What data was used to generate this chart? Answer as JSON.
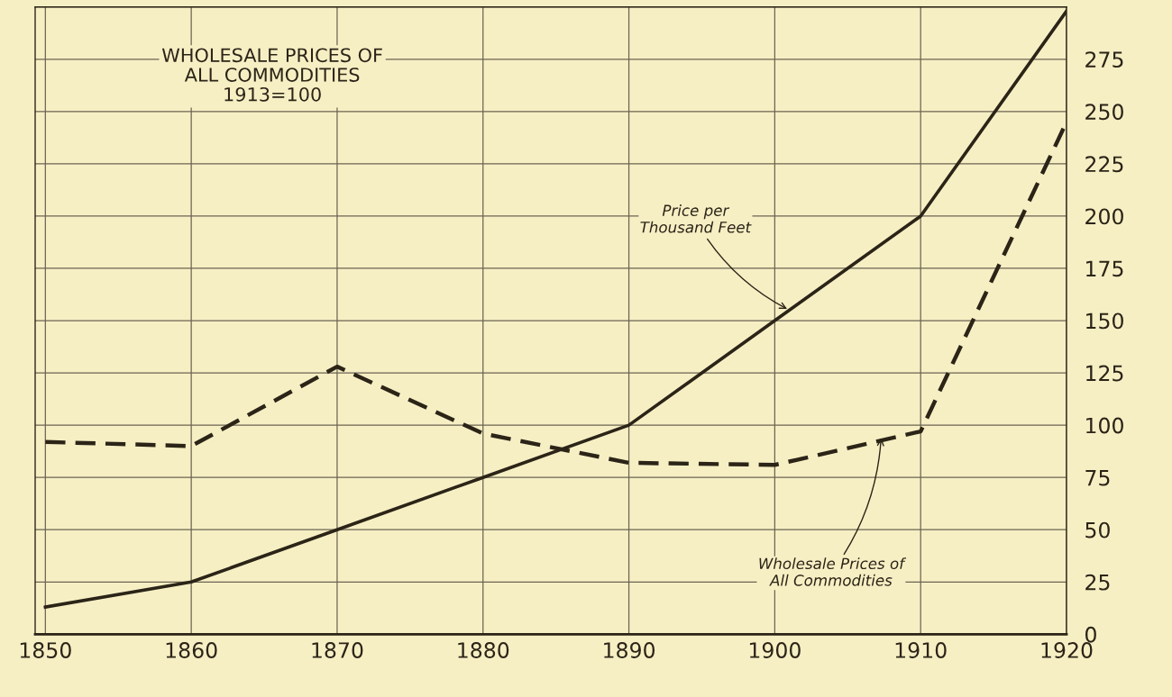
{
  "chart_data": {
    "type": "line",
    "x": [
      1850,
      1860,
      1870,
      1880,
      1890,
      1900,
      1910,
      1920
    ],
    "series": [
      {
        "color": "#2b2417",
        "line_style": "solid",
        "values": [
          13,
          25,
          50,
          75,
          100,
          150,
          200,
          298
        ]
      },
      {
        "color": "#2b2417",
        "line_style": "dashed",
        "values": [
          92,
          90,
          128,
          96,
          82,
          81,
          97,
          245
        ]
      }
    ],
    "xlim": [
      1849.3,
      1920
    ],
    "ylim": [
      0,
      300
    ],
    "xticks": [
      1850,
      1860,
      1870,
      1880,
      1890,
      1900,
      1910,
      1920
    ],
    "yticks": [
      0,
      25,
      50,
      75,
      100,
      125,
      150,
      175,
      200,
      225,
      250,
      275,
      {
        "value": 300,
        "label": null
      }
    ],
    "grid": true,
    "marker": "none",
    "annotations": [
      "WHOLESALE PRICES OF\nALL COMMODITIES\n1913=100",
      {
        "text": "Price per\nThousand Feet",
        "x": 1901,
        "y": 155
      },
      {
        "text": "Wholesale Prices of\nAll Commodities",
        "x": 1907.3,
        "y": 95
      }
    ]
  }
}
